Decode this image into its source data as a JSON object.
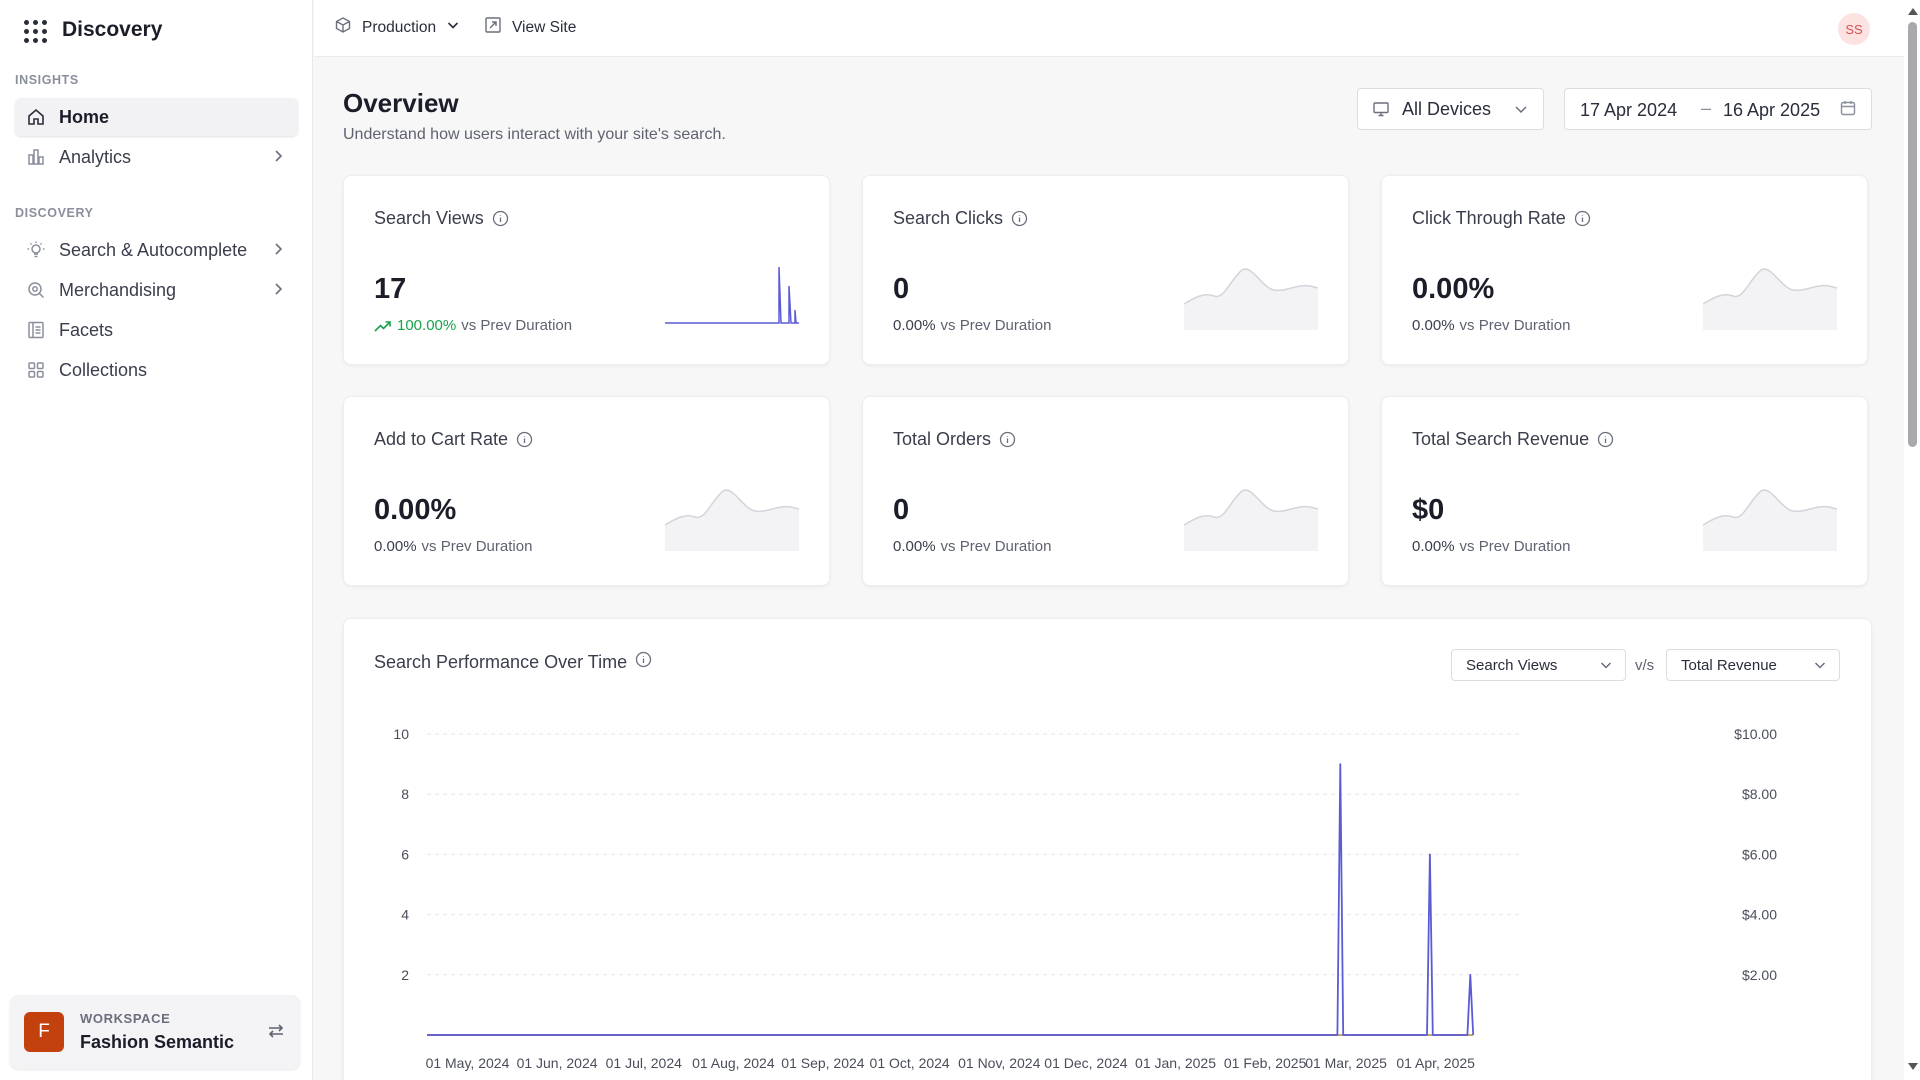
{
  "sidebar": {
    "title": "Discovery",
    "sections": [
      {
        "label": "INSIGHTS",
        "items": [
          {
            "label": "Home",
            "icon": "home-icon",
            "active": true
          },
          {
            "label": "Analytics",
            "icon": "bar-chart-icon",
            "chevron": true
          }
        ]
      },
      {
        "label": "DISCOVERY",
        "items": [
          {
            "label": "Search & Autocomplete",
            "icon": "lightbulb-icon",
            "chevron": true
          },
          {
            "label": "Merchandising",
            "icon": "search-badge-icon",
            "chevron": true
          },
          {
            "label": "Facets",
            "icon": "list-icon"
          },
          {
            "label": "Collections",
            "icon": "grid-icon"
          }
        ]
      }
    ],
    "workspace": {
      "label": "WORKSPACE",
      "name": "Fashion Semantic",
      "avatar": "F",
      "color": "#c2410c"
    }
  },
  "topbar": {
    "environment": "Production",
    "view_site": "View Site",
    "user_initials": "SS"
  },
  "header": {
    "title": "Overview",
    "subtitle": "Understand how users interact with your site's search.",
    "device_filter": "All Devices",
    "date_start": "17 Apr 2024",
    "date_end": "16 Apr 2025"
  },
  "cards": [
    {
      "title": "Search Views",
      "value": "17",
      "delta": "100.00%",
      "delta_label": "vs Prev Duration",
      "trend": "up",
      "sparkline": "spikes"
    },
    {
      "title": "Search Clicks",
      "value": "0",
      "delta": "0.00%",
      "delta_label": "vs Prev Duration",
      "trend": "flat",
      "sparkline": "placeholder"
    },
    {
      "title": "Click Through Rate",
      "value": "0.00%",
      "delta": "0.00%",
      "delta_label": "vs Prev Duration",
      "trend": "flat",
      "sparkline": "placeholder"
    },
    {
      "title": "Add to Cart Rate",
      "value": "0.00%",
      "delta": "0.00%",
      "delta_label": "vs Prev Duration",
      "trend": "flat",
      "sparkline": "placeholder"
    },
    {
      "title": "Total Orders",
      "value": "0",
      "delta": "0.00%",
      "delta_label": "vs Prev Duration",
      "trend": "flat",
      "sparkline": "placeholder"
    },
    {
      "title": "Total Search Revenue",
      "value": "$0",
      "delta": "0.00%",
      "delta_label": "vs Prev Duration",
      "trend": "flat",
      "sparkline": "placeholder"
    }
  ],
  "performance": {
    "title": "Search Performance Over Time",
    "left_metric": "Search Views",
    "vs_label": "v/s",
    "right_metric": "Total Revenue"
  },
  "colors": {
    "accent": "#5b5bd6",
    "revenue_line": "#c9a96b",
    "positive": "#16a34a"
  },
  "chart_data": {
    "type": "line",
    "title": "Search Performance Over Time",
    "x": [
      "2024-04-17",
      "2025-02-26",
      "2025-02-27",
      "2025-02-28",
      "2025-03-29",
      "2025-03-30",
      "2025-03-31",
      "2025-04-12",
      "2025-04-13",
      "2025-04-14"
    ],
    "x_ticks": [
      "01 May, 2024",
      "01 Jun, 2024",
      "01 Jul, 2024",
      "01 Aug, 2024",
      "01 Sep, 2024",
      "01 Oct, 2024",
      "01 Nov, 2024",
      "01 Dec, 2024",
      "01 Jan, 2025",
      "01 Feb, 2025",
      "01 Mar, 2025",
      "01 Apr, 2025"
    ],
    "series": [
      {
        "name": "Search Views",
        "axis": "left",
        "color": "#5b5bd6",
        "values": [
          0,
          0,
          9,
          0,
          0,
          6,
          0,
          0,
          2,
          0
        ]
      },
      {
        "name": "Total Revenue",
        "axis": "right",
        "color": "#c9a96b",
        "values": [
          0,
          0,
          0,
          0,
          0,
          0,
          0,
          0,
          0,
          0
        ]
      }
    ],
    "y_left": {
      "ticks": [
        2,
        4,
        6,
        8,
        10
      ],
      "ylim": [
        0,
        10
      ]
    },
    "y_right": {
      "ticks": [
        "$2.00",
        "$4.00",
        "$6.00",
        "$8.00",
        "$10.00"
      ],
      "ylim": [
        0,
        10
      ]
    },
    "grid": true,
    "x_range": [
      "2024-04-17",
      "2025-04-16"
    ]
  }
}
